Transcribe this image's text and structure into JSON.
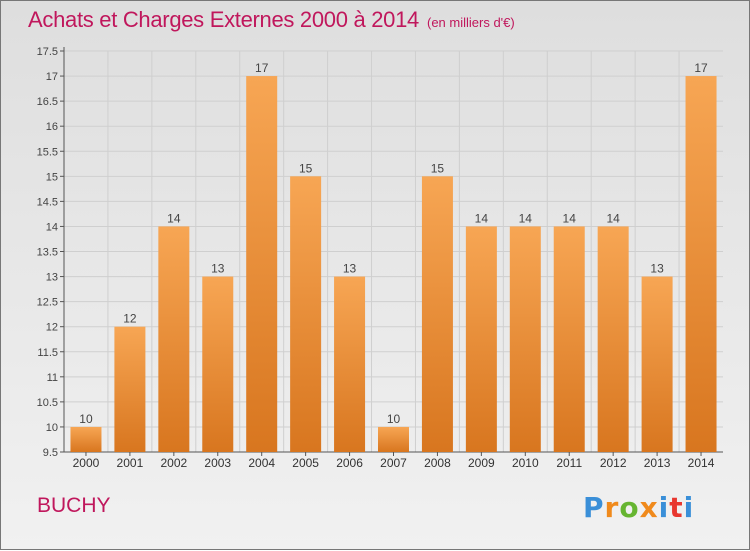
{
  "title": "Achats et Charges Externes 2000 à 2014",
  "subtitle": "(en milliers d'€)",
  "location": "BUCHY",
  "logo": {
    "letters": [
      "P",
      "r",
      "o",
      "x",
      "i",
      "t",
      "i"
    ]
  },
  "colors": {
    "title": "#c0175c",
    "bar_top": "#f7a654",
    "bar_bottom": "#d8761f",
    "grid": "#cfcfcf"
  },
  "chart_data": {
    "type": "bar",
    "categories": [
      "2000",
      "2001",
      "2002",
      "2003",
      "2004",
      "2005",
      "2006",
      "2007",
      "2008",
      "2009",
      "2010",
      "2011",
      "2012",
      "2013",
      "2014"
    ],
    "values": [
      10,
      12,
      14,
      13,
      17,
      15,
      13,
      10,
      15,
      14,
      14,
      14,
      14,
      13,
      17
    ],
    "data_labels": [
      "10",
      "12",
      "14",
      "13",
      "17",
      "15",
      "13",
      "10",
      "15",
      "14",
      "14",
      "14",
      "14",
      "13",
      "17"
    ],
    "yticks": [
      9.5,
      10,
      10.5,
      11,
      11.5,
      12,
      12.5,
      13,
      13.5,
      14,
      14.5,
      15,
      15.5,
      16,
      16.5,
      17,
      17.5
    ],
    "ytick_labels": [
      "9.5",
      "10",
      "10.5",
      "11",
      "11.5",
      "12",
      "12.5",
      "13",
      "13.5",
      "14",
      "14.5",
      "15",
      "15.5",
      "16",
      "16.5",
      "17",
      "17.5"
    ],
    "ylim": [
      9.5,
      17.5
    ],
    "grid": true,
    "title": "Achats et Charges Externes 2000 à 2014",
    "subtitle": "(en milliers d'€)",
    "xlabel": "",
    "ylabel": ""
  }
}
